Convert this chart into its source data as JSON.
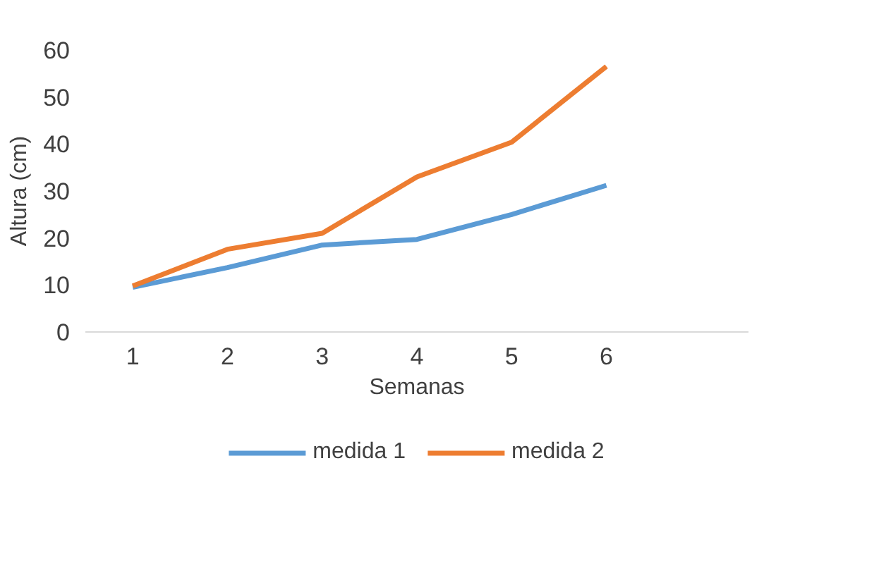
{
  "chart_data": {
    "type": "line",
    "xlabel": "Semanas",
    "ylabel": "Altura (cm)",
    "x": [
      1,
      2,
      3,
      4,
      5,
      6
    ],
    "xlim": [
      0.5,
      7.5
    ],
    "xticks": [
      1,
      2,
      3,
      4,
      5,
      6
    ],
    "ylim": [
      0,
      60
    ],
    "yticks": [
      0,
      10,
      20,
      30,
      40,
      50,
      60
    ],
    "series": [
      {
        "name": "medida 1",
        "color": "#5b9bd5",
        "values": [
          9.5,
          13.7,
          18.5,
          19.7,
          25,
          31.2
        ]
      },
      {
        "name": "medida 2",
        "color": "#ed7d31",
        "values": [
          9.8,
          17.6,
          21,
          33,
          40.4,
          56.5
        ]
      }
    ],
    "legend": "bottom",
    "grid": false,
    "marker": "none",
    "line_style": "solid"
  }
}
